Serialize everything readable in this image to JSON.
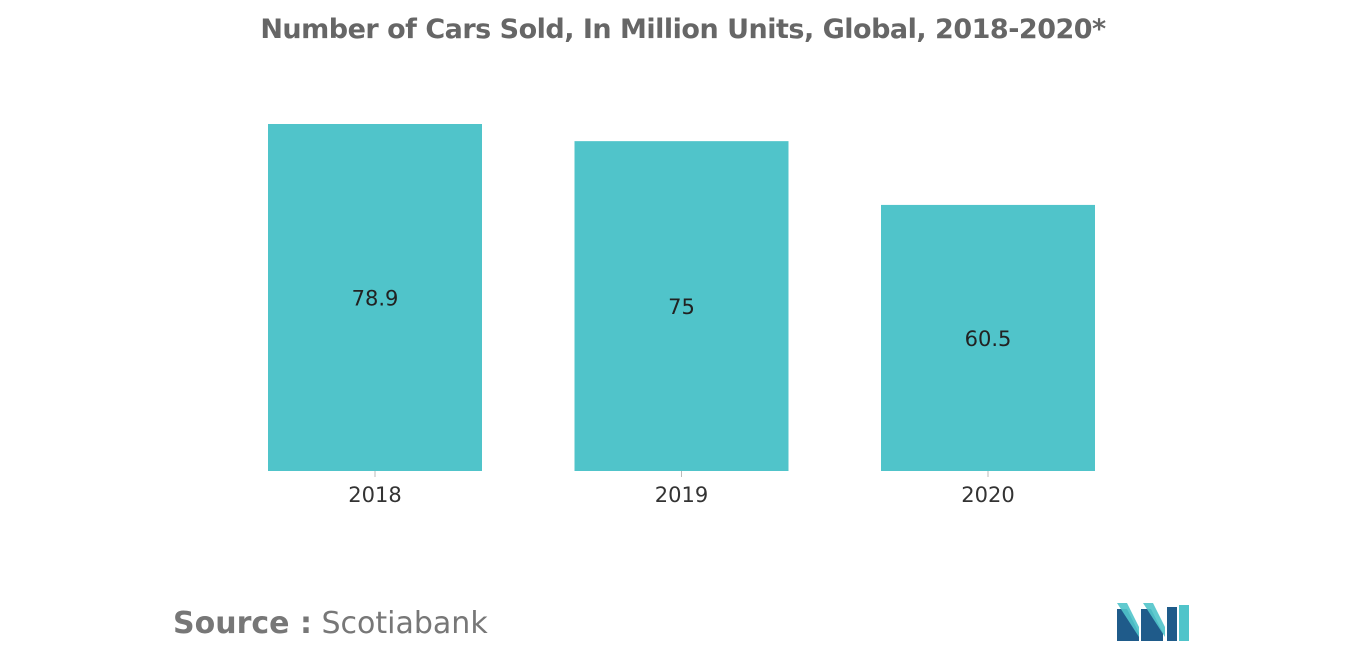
{
  "chart_data": {
    "type": "bar",
    "title": "Number of Cars Sold, In Million Units, Global, 2018-2020*",
    "categories": [
      "2018",
      "2019",
      "2020"
    ],
    "values": [
      78.9,
      75,
      60.5
    ],
    "value_labels": [
      "78.9",
      "75",
      "60.5"
    ],
    "xlabel": "",
    "ylabel": "",
    "ylim": [
      0,
      80
    ],
    "grid": false,
    "legend": "none",
    "bar_color": "#50c4ca"
  },
  "source": {
    "label": "Source :",
    "name": "Scotiabank"
  },
  "colors": {
    "title": "#666666",
    "source": "#777777",
    "logo_dark": "#1f5b8a",
    "logo_light": "#50c4ca"
  }
}
